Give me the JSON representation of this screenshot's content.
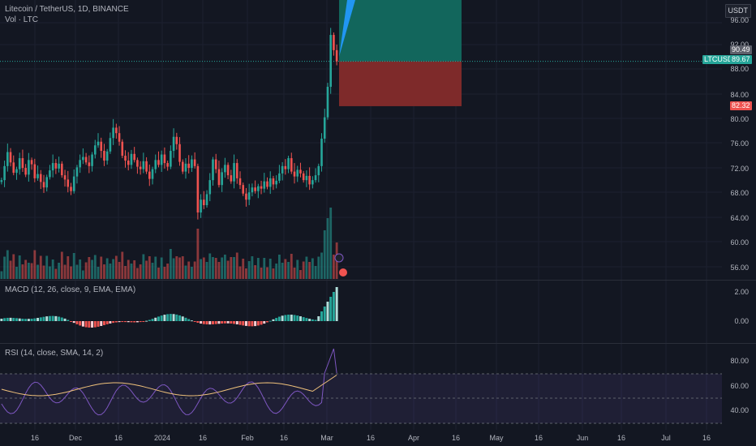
{
  "symbol": {
    "title": "Litecoin / TetherUS, 1D, BINANCE",
    "vol_label": "Vol · LTC",
    "currency": "USDT"
  },
  "price_axis": {
    "labels": [
      "96.00",
      "92.00",
      "88.00",
      "84.00",
      "80.00",
      "76.00",
      "72.00",
      "68.00",
      "64.00",
      "60.00",
      "56.00"
    ]
  },
  "price_tags": {
    "target": "90.49",
    "symbol_tag": "LTCUSDT",
    "last": "89.67",
    "stop": "82.32"
  },
  "macd": {
    "title": "MACD (12, 26, close, 9, EMA, EMA)",
    "labels": [
      "2.00",
      "0.00"
    ]
  },
  "rsi": {
    "title": "RSI (14, close, SMA, 14, 2)",
    "labels": [
      "80.00",
      "60.00",
      "40.00"
    ]
  },
  "time_axis": {
    "labels": [
      "16",
      "Dec",
      "16",
      "2024",
      "16",
      "Feb",
      "16",
      "Mar",
      "16",
      "Apr",
      "16",
      "May",
      "16",
      "Jun",
      "16",
      "Jul",
      "16"
    ]
  },
  "colors": {
    "bg": "#131722",
    "up": "#26a69a",
    "down": "#ef5350",
    "profit": "#12665c",
    "loss": "#7e2a2a",
    "rsi_line": "#7e57c2",
    "rsi_ma": "#f0c27b"
  },
  "chart_data": {
    "type": "candlestick",
    "y_range": [
      54,
      98
    ],
    "position": {
      "entry": 89.67,
      "target": 90.49,
      "stop": 82.32
    },
    "close": [
      70.2,
      72.5,
      74.8,
      73.1,
      71.4,
      72.0,
      73.8,
      72.2,
      71.1,
      73.5,
      72.8,
      70.5,
      71.2,
      69.9,
      69.0,
      70.7,
      71.8,
      73.0,
      72.1,
      72.9,
      71.0,
      70.3,
      69.1,
      68.4,
      70.8,
      72.3,
      73.5,
      74.0,
      73.1,
      72.5,
      74.4,
      75.9,
      76.5,
      75.0,
      73.4,
      74.9,
      77.1,
      78.8,
      77.9,
      76.5,
      74.2,
      73.4,
      72.7,
      74.5,
      73.5,
      72.4,
      72.0,
      73.3,
      71.6,
      70.4,
      72.0,
      73.5,
      72.7,
      74.4,
      73.0,
      72.4,
      75.0,
      77.3,
      76.1,
      73.2,
      71.6,
      72.9,
      72.2,
      73.6,
      72.5,
      64.9,
      67.0,
      66.1,
      67.9,
      70.2,
      73.6,
      72.0,
      69.4,
      71.5,
      72.7,
      71.0,
      70.0,
      73.0,
      70.5,
      69.4,
      68.0,
      67.0,
      68.2,
      69.0,
      68.4,
      69.2,
      68.8,
      70.0,
      69.1,
      70.5,
      69.5,
      70.1,
      71.3,
      72.5,
      72.0,
      73.8,
      71.6,
      70.8,
      71.9,
      71.3,
      70.2,
      70.9,
      69.5,
      70.2,
      71.0,
      72.5,
      77.0,
      80.5,
      85.5,
      94.0,
      91.5,
      89.67
    ]
  }
}
